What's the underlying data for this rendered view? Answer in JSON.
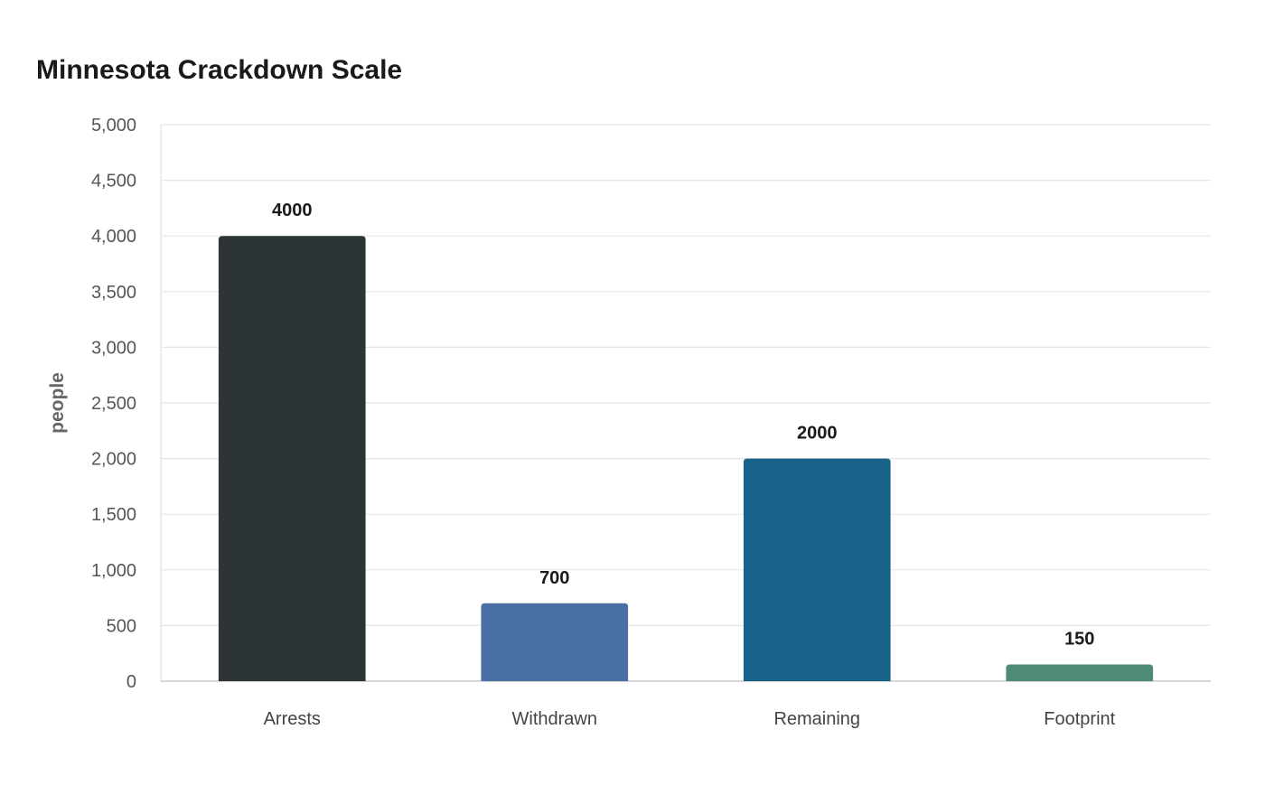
{
  "chart_data": {
    "type": "bar",
    "title": "Minnesota Crackdown Scale",
    "xlabel": "",
    "ylabel": "people",
    "categories": [
      "Arrests",
      "Withdrawn",
      "Remaining",
      "Footprint"
    ],
    "values": [
      4000,
      700,
      2000,
      150
    ],
    "data_labels": [
      "4000",
      "700",
      "2000",
      "150"
    ],
    "colors": [
      "#2c3437",
      "#4a6fa5",
      "#166289",
      "#4d8b78"
    ],
    "ylim": [
      0,
      5000
    ],
    "yticks": [
      0,
      500,
      1000,
      1500,
      2000,
      2500,
      3000,
      3500,
      4000,
      4500,
      5000
    ],
    "ytick_labels": [
      "0",
      "500",
      "1,000",
      "1,500",
      "2,000",
      "2,500",
      "3,000",
      "3,500",
      "4,000",
      "4,500",
      "5,000"
    ],
    "grid": true,
    "legend": "none"
  }
}
